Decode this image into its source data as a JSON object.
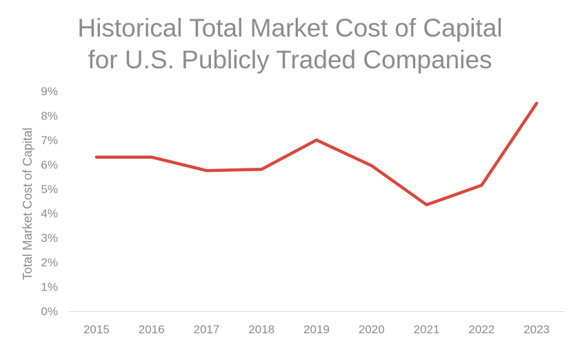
{
  "chart_data": {
    "type": "line",
    "title_lines": [
      "Historical Total Market Cost of Capital",
      "for U.S. Publicly Traded Companies"
    ],
    "xlabel": "",
    "ylabel": "Total Market Cost of Capital",
    "categories": [
      "2015",
      "2016",
      "2017",
      "2018",
      "2019",
      "2020",
      "2021",
      "2022",
      "2023"
    ],
    "series": [
      {
        "values": [
          6.3,
          6.3,
          5.75,
          5.8,
          7.0,
          5.95,
          4.35,
          5.15,
          8.5
        ],
        "color": "#d9483b"
      }
    ],
    "ylim": [
      0,
      9
    ],
    "yticks": [
      "0%",
      "1%",
      "2%",
      "3%",
      "4%",
      "5%",
      "6%",
      "7%",
      "8%",
      "9%"
    ],
    "grid": false,
    "legend": "none"
  }
}
